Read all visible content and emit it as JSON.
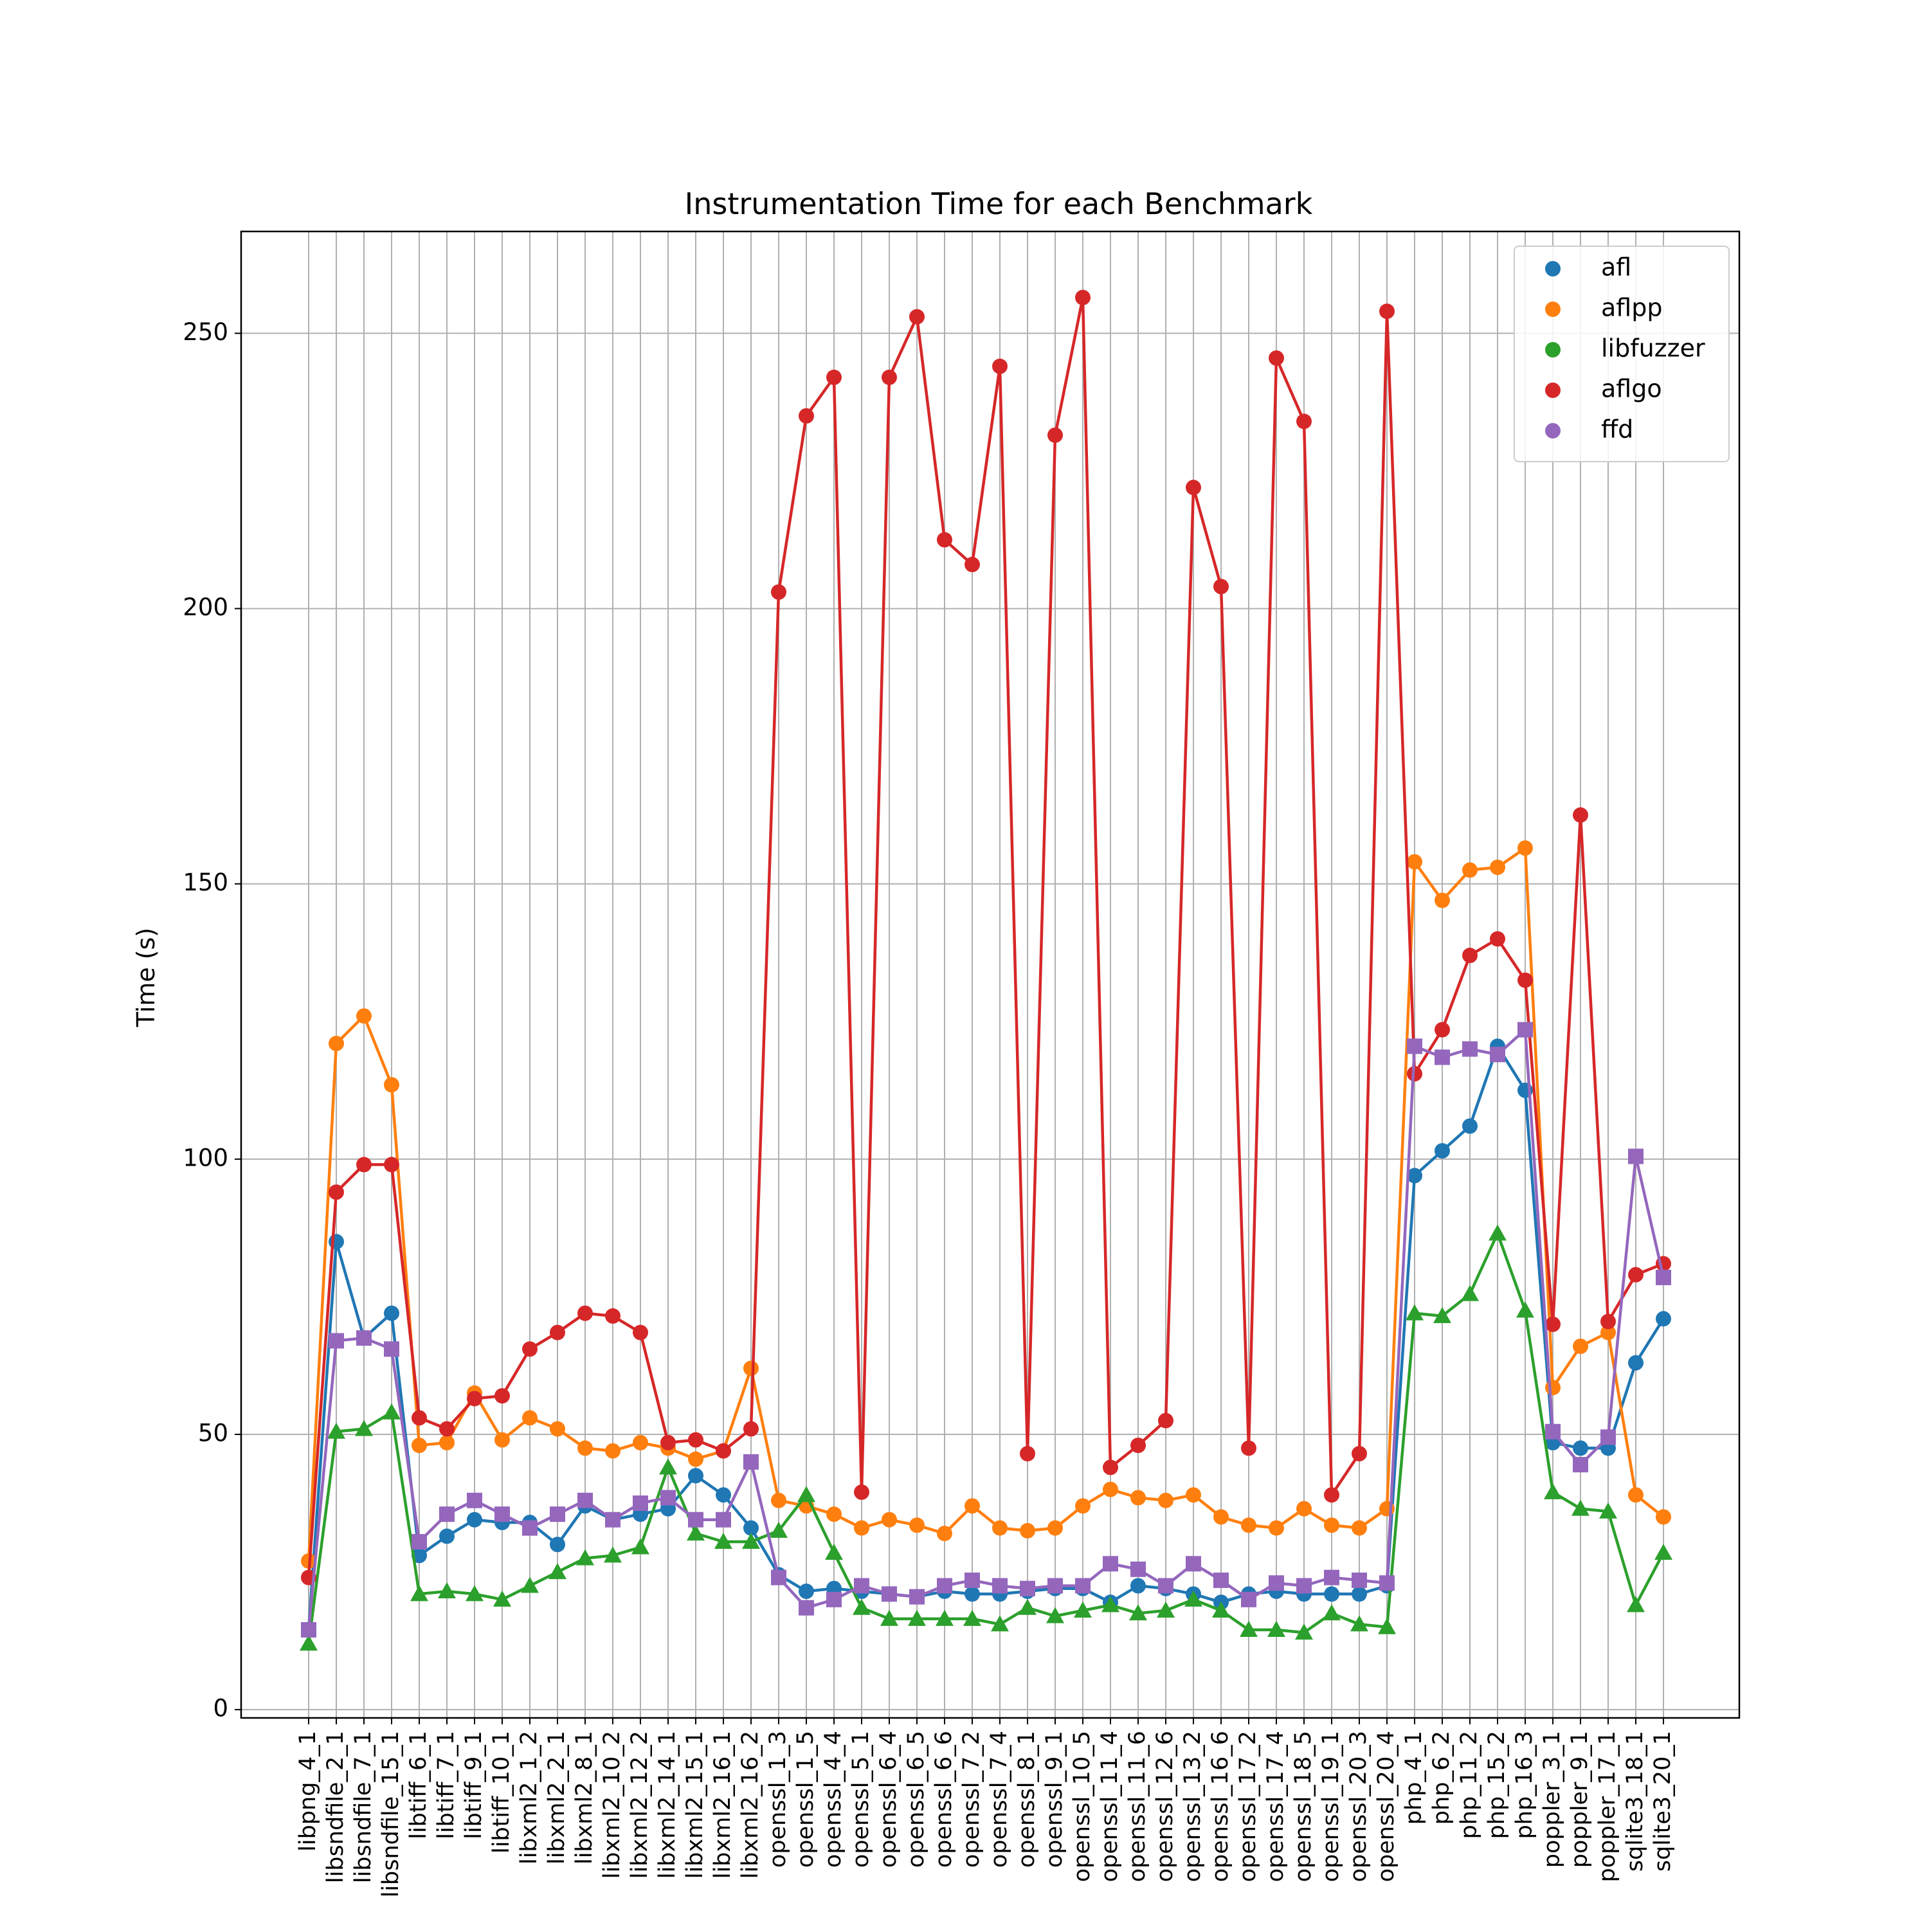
{
  "chart_data": {
    "type": "line",
    "title": "Instrumentation Time for each Benchmark",
    "xlabel": "",
    "ylabel": "Time (s)",
    "ylim": [
      -1.5,
      268.5
    ],
    "yticks": [
      0,
      50,
      100,
      150,
      200,
      250
    ],
    "grid": true,
    "legend_position": "top-right",
    "categories": [
      "libpng_4_1",
      "libsndfile_2_1",
      "libsndfile_7_1",
      "libsndfile_15_1",
      "libtiff_6_1",
      "libtiff_7_1",
      "libtiff_9_1",
      "libtiff_10_1",
      "libxml2_1_2",
      "libxml2_2_1",
      "libxml2_8_1",
      "libxml2_10_2",
      "libxml2_12_2",
      "libxml2_14_1",
      "libxml2_15_1",
      "libxml2_16_1",
      "libxml2_16_2",
      "openssl_1_3",
      "openssl_1_5",
      "openssl_4_4",
      "openssl_5_1",
      "openssl_6_4",
      "openssl_6_5",
      "openssl_6_6",
      "openssl_7_2",
      "openssl_7_4",
      "openssl_8_1",
      "openssl_9_1",
      "openssl_10_5",
      "openssl_11_4",
      "openssl_11_6",
      "openssl_12_6",
      "openssl_13_2",
      "openssl_16_6",
      "openssl_17_2",
      "openssl_17_4",
      "openssl_18_5",
      "openssl_19_1",
      "openssl_20_3",
      "openssl_20_4",
      "php_4_1",
      "php_6_2",
      "php_11_2",
      "php_15_2",
      "php_16_3",
      "poppler_3_1",
      "poppler_9_1",
      "poppler_17_1",
      "sqlite3_18_1",
      "sqlite3_20_1"
    ],
    "series": [
      {
        "name": "afl",
        "color": "#1f77b4",
        "marker": "circle",
        "values": [
          14.5,
          85,
          67.5,
          72,
          28,
          31.5,
          34.5,
          34,
          34,
          30,
          37,
          34.5,
          35.5,
          36.5,
          42.5,
          39,
          33,
          24.5,
          21.5,
          22,
          21.5,
          21,
          20.5,
          21.5,
          21,
          21,
          21.5,
          22,
          22,
          19.5,
          22.5,
          22,
          21,
          19.5,
          21,
          21.5,
          21,
          21,
          21,
          22.5,
          97,
          101.5,
          106,
          120.5,
          112.5,
          48.5,
          47.5,
          47.5,
          63,
          71
        ]
      },
      {
        "name": "aflpp",
        "color": "#ff7f0e",
        "marker": "circle",
        "values": [
          27,
          121,
          126,
          113.5,
          48,
          48.5,
          57.5,
          49,
          53,
          51,
          47.5,
          47,
          48.5,
          47.5,
          45.5,
          47,
          62,
          38,
          37,
          35.5,
          33,
          34.5,
          33.5,
          32,
          37,
          33,
          32.5,
          33,
          37,
          40,
          38.5,
          38,
          39,
          35,
          33.5,
          33,
          36.5,
          33.5,
          33,
          36.5,
          154,
          147,
          152.5,
          153,
          156.5,
          58.5,
          66,
          68.5,
          39,
          35
        ]
      },
      {
        "name": "libfuzzer",
        "color": "#2ca02c",
        "marker": "triangle",
        "values": [
          12,
          50.5,
          51,
          54,
          21,
          21.5,
          21,
          20,
          22.5,
          25,
          27.5,
          28,
          29.5,
          44,
          32,
          30.5,
          30.5,
          32.5,
          39,
          28.5,
          18.5,
          16.5,
          16.5,
          16.5,
          16.5,
          15.5,
          18.5,
          17,
          18,
          19,
          17.5,
          18,
          20,
          18,
          14.5,
          14.5,
          14,
          17.5,
          15.5,
          15,
          72,
          71.5,
          75.5,
          86.5,
          72.5,
          39.5,
          36.5,
          36,
          19,
          28.5
        ]
      },
      {
        "name": "aflgo",
        "color": "#d62728",
        "marker": "circle",
        "values": [
          24,
          94,
          99,
          99,
          53,
          51,
          56.5,
          57,
          65.5,
          68.5,
          72,
          71.5,
          68.5,
          48.5,
          49,
          47,
          51,
          203,
          235,
          242,
          39.5,
          242,
          253,
          212.5,
          208,
          244,
          46.5,
          231.5,
          256.5,
          44,
          48,
          52.5,
          222,
          204,
          47.5,
          245.5,
          234,
          39,
          46.5,
          254,
          115.5,
          123.5,
          137,
          140,
          132.5,
          70,
          162.5,
          70.5,
          79,
          81
        ]
      },
      {
        "name": "ffd",
        "color": "#9467bd",
        "marker": "square",
        "values": [
          14.5,
          67,
          67.5,
          65.5,
          30.5,
          35.5,
          38,
          35.5,
          33,
          35.5,
          38,
          34.5,
          37.5,
          38.5,
          34.5,
          34.5,
          45,
          24,
          18.5,
          20,
          22.5,
          21,
          20.5,
          22.5,
          23.5,
          22.5,
          22,
          22.5,
          22.5,
          26.5,
          25.5,
          22.5,
          26.5,
          23.5,
          20,
          23,
          22.5,
          24,
          23.5,
          23,
          120.5,
          118.5,
          120,
          119,
          123.5,
          50.5,
          44.5,
          49.5,
          100.5,
          78.5
        ]
      }
    ]
  }
}
